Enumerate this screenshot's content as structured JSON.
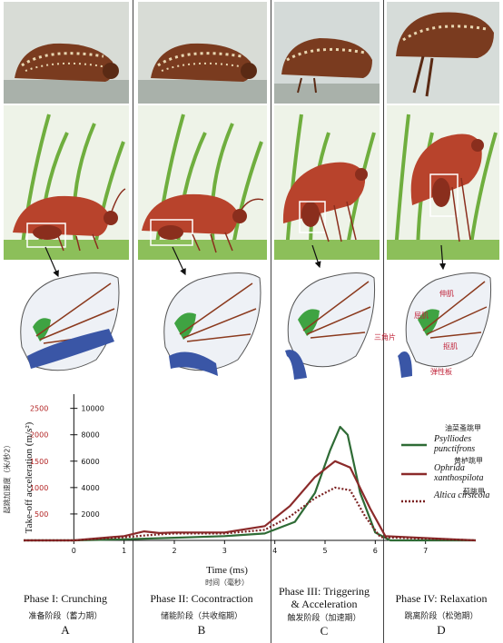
{
  "panels": [
    {
      "label": "Phase I: Crunching",
      "cn": "准备阶段（蓄力期）",
      "letter": "A"
    },
    {
      "label": "Phase II: Cocontraction",
      "cn": "储能阶段（共收缩期）",
      "letter": "B"
    },
    {
      "label": "Phase III: Triggering & Acceleration",
      "label_line1": "Phase III: Triggering",
      "label_line2": "& Acceleration",
      "cn": "触发阶段（加速期）",
      "letter": "C"
    },
    {
      "label": "Phase IV: Relaxation",
      "cn": "跳离阶段（松弛期）",
      "letter": "D"
    }
  ],
  "annotations": {
    "extensor": "伸肌",
    "flexor": "屈肌",
    "triangle": "三角片",
    "lever": "抠肌",
    "elastic": "弹性板"
  },
  "chart_data": {
    "type": "line",
    "xlabel": "Time (ms)",
    "xlabel_cn": "时间（毫秒）",
    "ylabel": "Take-off acceleration (m/s²)",
    "ylabel_cn": "起跳加速度（米/秒2）",
    "xlim": [
      -1,
      8
    ],
    "x_ticks": [
      "0",
      "1",
      "2",
      "3",
      "4",
      "5",
      "6",
      "7"
    ],
    "y_ticks_left": [
      "500",
      "1000",
      "1500",
      "2000",
      "2500"
    ],
    "y_ticks_right": [
      "2000",
      "4000",
      "6000",
      "8000",
      "10000"
    ],
    "ylim": [
      0,
      2700
    ],
    "series": [
      {
        "name": "Psylliodes punctifrons",
        "name_cn": "油菜蚤跳甲",
        "color": "#2e6b35",
        "style": "solid",
        "x": [
          -1,
          0,
          1,
          2,
          3,
          3.8,
          4.4,
          4.8,
          5.1,
          5.3,
          5.45,
          5.7,
          6.0,
          6.3,
          8
        ],
        "y": [
          0,
          0,
          20,
          50,
          80,
          130,
          350,
          900,
          1700,
          2150,
          2000,
          900,
          150,
          0,
          0
        ]
      },
      {
        "name": "Ophrida xanthospilota",
        "name_cn": "黄栌跳甲",
        "color": "#8b2a2a",
        "style": "solid",
        "x": [
          -1,
          0,
          1,
          1.4,
          1.7,
          2.0,
          3.0,
          3.8,
          4.3,
          4.8,
          5.2,
          5.5,
          5.9,
          6.2,
          8
        ],
        "y": [
          0,
          0,
          80,
          170,
          140,
          150,
          150,
          270,
          650,
          1200,
          1500,
          1380,
          600,
          80,
          0
        ]
      },
      {
        "name": "Altica cirsicola",
        "name_cn": "蓟跳甲",
        "color": "#7a2020",
        "style": "dotted",
        "x": [
          -1,
          0,
          1,
          1.5,
          2.0,
          3.0,
          3.8,
          4.3,
          4.8,
          5.2,
          5.5,
          5.8,
          6.1,
          8
        ],
        "y": [
          0,
          0,
          60,
          100,
          130,
          130,
          200,
          450,
          800,
          1000,
          950,
          450,
          60,
          0
        ]
      }
    ]
  },
  "colors": {
    "divider": "#444444",
    "grass": "#6fae3e",
    "beetle": "#b8432c",
    "muscle_green": "#3fa342",
    "tendon_blue": "#3a56a6"
  }
}
